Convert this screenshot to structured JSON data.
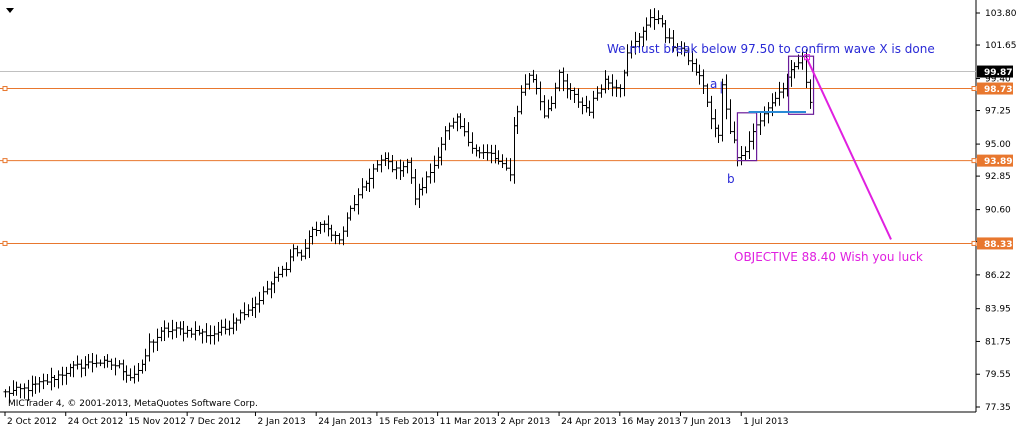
{
  "chart_data": {
    "type": "bar",
    "subtype": "ohlc",
    "watermark": "MICTrader 4, © 2001-2013, MetaQuotes Software Corp.",
    "ylim": [
      77.35,
      104.5
    ],
    "y_ticks": [
      "103.80",
      "101.65",
      "99.40",
      "97.25",
      "95.00",
      "92.85",
      "90.60",
      "88.45",
      "86.22",
      "83.95",
      "81.75",
      "79.55",
      "77.35"
    ],
    "x_ticks": [
      "2 Oct 2012",
      "24 Oct 2012",
      "15 Nov 2012",
      "7 Dec 2012",
      "2 Jan 2013",
      "24 Jan 2013",
      "15 Feb 2013",
      "11 Mar 2013",
      "2 Apr 2013",
      "24 Apr 2013",
      "16 May 2013",
      "7 Jun 2013",
      "1 Jul 2013"
    ],
    "horizontal_levels": [
      {
        "value": 99.87,
        "label": "99.87",
        "color": "#c0c0c0"
      },
      {
        "value": 98.73,
        "label": "98.73",
        "color": "#e8772e"
      },
      {
        "value": 93.89,
        "label": "93.89",
        "color": "#e8772e"
      },
      {
        "value": 88.33,
        "label": "88.33",
        "color": "#e8772e"
      }
    ],
    "price_path": [
      [
        0,
        78.3
      ],
      [
        6,
        78.6
      ],
      [
        12,
        79.2
      ],
      [
        18,
        80.0
      ],
      [
        24,
        80.4
      ],
      [
        30,
        80.1
      ],
      [
        33,
        79.4
      ],
      [
        36,
        80.0
      ],
      [
        38,
        81.6
      ],
      [
        42,
        82.5
      ],
      [
        46,
        82.5
      ],
      [
        50,
        82.4
      ],
      [
        54,
        82.2
      ],
      [
        58,
        82.6
      ],
      [
        62,
        83.6
      ],
      [
        66,
        84.3
      ],
      [
        70,
        85.6
      ],
      [
        74,
        86.8
      ],
      [
        76,
        88.0
      ],
      [
        78,
        87.4
      ],
      [
        80,
        88.8
      ],
      [
        83,
        89.6
      ],
      [
        86,
        89.1
      ],
      [
        88,
        88.5
      ],
      [
        91,
        90.6
      ],
      [
        94,
        91.9
      ],
      [
        97,
        93.3
      ],
      [
        100,
        94.0
      ],
      [
        103,
        93.2
      ],
      [
        106,
        93.8
      ],
      [
        108,
        91.4
      ],
      [
        110,
        92.2
      ],
      [
        113,
        93.6
      ],
      [
        116,
        95.8
      ],
      [
        119,
        96.6
      ],
      [
        122,
        95.2
      ],
      [
        125,
        94.4
      ],
      [
        128,
        94.3
      ],
      [
        131,
        93.5
      ],
      [
        133,
        93.1
      ],
      [
        134,
        96.2
      ],
      [
        136,
        98.4
      ],
      [
        138,
        99.7
      ],
      [
        140,
        98.8
      ],
      [
        142,
        97.0
      ],
      [
        144,
        97.9
      ],
      [
        146,
        99.6
      ],
      [
        148,
        98.7
      ],
      [
        150,
        98.2
      ],
      [
        152,
        97.6
      ],
      [
        154,
        97.3
      ],
      [
        156,
        98.5
      ],
      [
        158,
        99.3
      ],
      [
        160,
        99.0
      ],
      [
        162,
        98.9
      ],
      [
        164,
        101.0
      ],
      [
        166,
        101.8
      ],
      [
        168,
        102.7
      ],
      [
        170,
        103.3
      ],
      [
        172,
        103.6
      ],
      [
        174,
        102.2
      ],
      [
        176,
        101.6
      ],
      [
        178,
        101.4
      ],
      [
        180,
        100.7
      ],
      [
        182,
        99.9
      ],
      [
        184,
        99.0
      ],
      [
        186,
        96.6
      ],
      [
        188,
        95.5
      ],
      [
        189,
        98.9
      ],
      [
        191,
        96.0
      ],
      [
        193,
        94.3
      ],
      [
        195,
        94.5
      ],
      [
        197,
        95.9
      ],
      [
        199,
        96.5
      ],
      [
        201,
        97.5
      ],
      [
        203,
        98.1
      ],
      [
        205,
        98.8
      ],
      [
        207,
        99.8
      ],
      [
        209,
        100.5
      ],
      [
        210,
        100.7
      ],
      [
        212,
        97.8
      ]
    ],
    "annotations": [
      {
        "text": "We must break below 97.50 to confirm wave X is done",
        "color": "#2a2ad6"
      },
      {
        "text": "OBJECTIVE 88.40 Wish you luck",
        "color": "#e020e0"
      },
      {
        "text": "a",
        "color": "#2a2ad6"
      },
      {
        "text": "b",
        "color": "#2a2ad6"
      }
    ],
    "grid": false,
    "colors": {
      "bars": "#000000",
      "level_line": "#e8772e",
      "level_label_bg": "#e8772e",
      "current_label_bg": "#000000",
      "trend_line": "#e020e0",
      "box_line": "#6a1b9a",
      "break_line": "#2a8ad6"
    }
  }
}
